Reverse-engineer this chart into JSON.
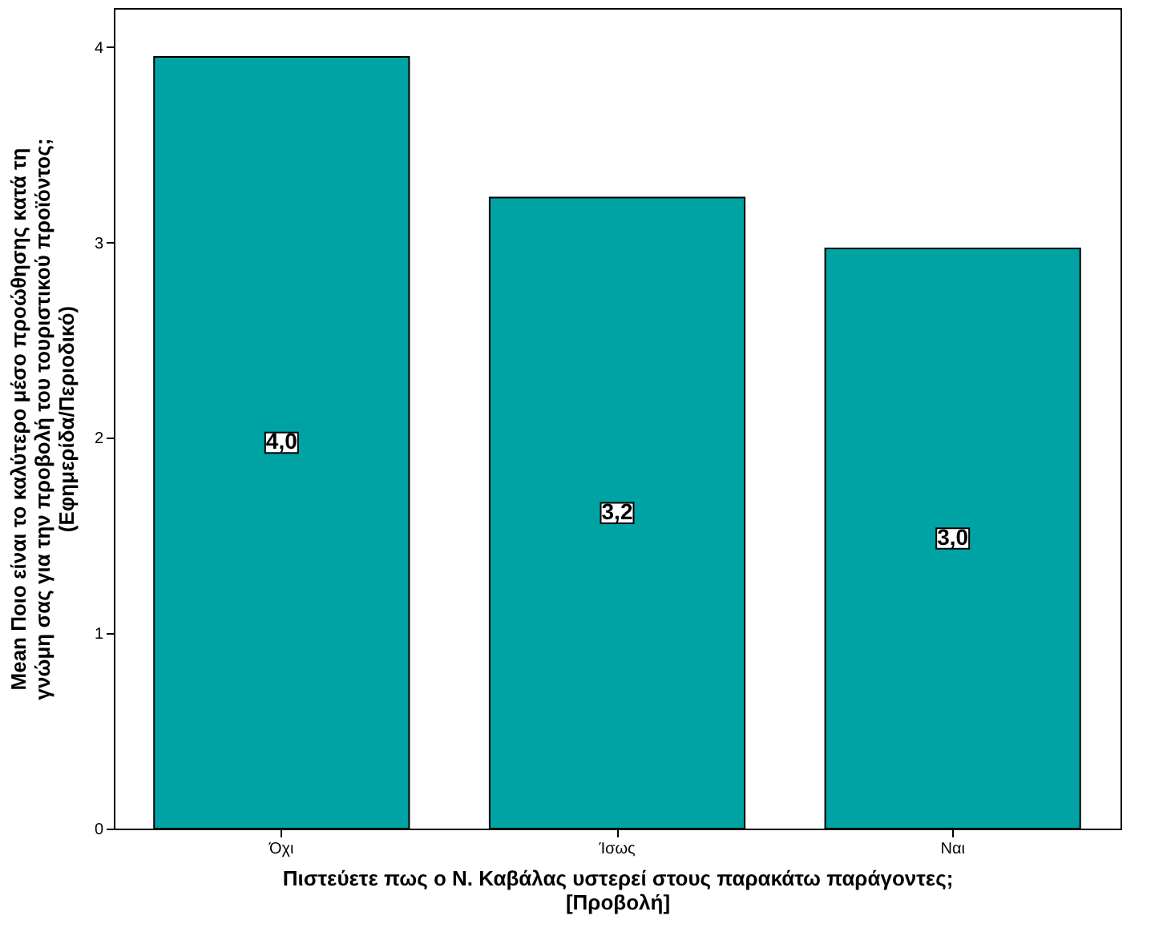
{
  "chart_data": {
    "type": "bar",
    "xlabel": [
      "Πιστεύετε πως ο Ν. Καβάλας υστερεί στους παρακάτω παράγοντες;",
      "[Προβολή]"
    ],
    "ylabel": [
      "Mean Ποιο είναι το καλύτερο μέσο προώθησης κατά τη",
      "γνώμη σας για την προβολή του τουριστικού προϊόντος;",
      "(Εφημερίδα/Περιοδικό)"
    ],
    "categories": [
      "Όχι",
      "Ίσως",
      "Ναι"
    ],
    "values": [
      3.95,
      3.23,
      2.97
    ],
    "value_labels": [
      "4,0",
      "3,2",
      "3,0"
    ],
    "color": "#00a3a3",
    "ylim": [
      0,
      4.2
    ],
    "yticks": [
      0,
      1,
      2,
      3,
      4
    ],
    "grid": false
  }
}
